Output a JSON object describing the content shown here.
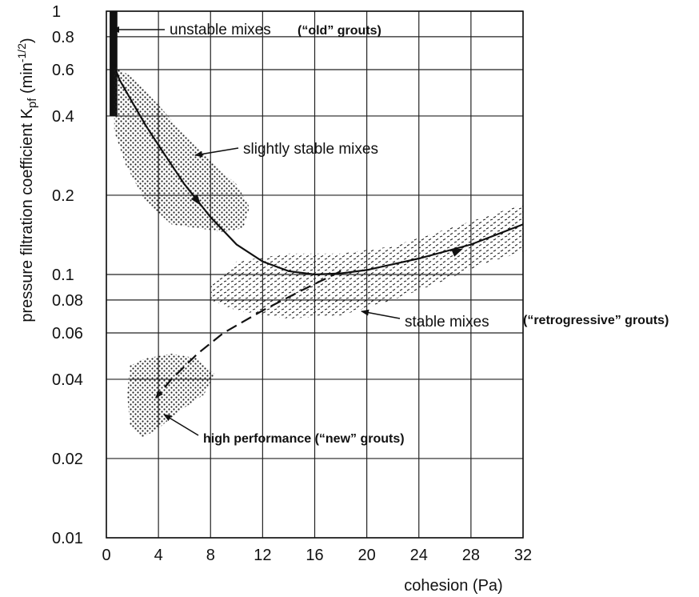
{
  "chart_data": {
    "type": "line",
    "xlabel": "cohesion (Pa)",
    "ylabel": "pressure filtration coefficient K",
    "ylabel_sub": "pf",
    "ylabel_unit_open": " (min",
    "ylabel_unit_exp": "-1/2",
    "ylabel_unit_close": ")",
    "xlim": [
      0,
      32
    ],
    "ylim": [
      0.01,
      1
    ],
    "y_scale": "log",
    "grid": true,
    "x_ticks": [
      0,
      4,
      8,
      12,
      16,
      20,
      24,
      28,
      32
    ],
    "x_tick_labels": [
      "0",
      "4",
      "8",
      "12",
      "16",
      "20",
      "24",
      "28",
      "32"
    ],
    "y_ticks": [
      0.01,
      0.02,
      0.04,
      0.06,
      0.08,
      0.1,
      0.2,
      0.4,
      0.6,
      0.8,
      1
    ],
    "y_tick_labels": [
      "0.01",
      "0.02",
      "0.04",
      "0.06",
      "0.08",
      "0.1",
      "0.2",
      "0.4",
      "0.6",
      "0.8",
      "1"
    ],
    "series": [
      {
        "style": "solid",
        "x": [
          0.5,
          1,
          2,
          3,
          4,
          6,
          8,
          10,
          12,
          14,
          16,
          18,
          20,
          24,
          28,
          32
        ],
        "y": [
          0.64,
          0.55,
          0.45,
          0.37,
          0.31,
          0.22,
          0.165,
          0.13,
          0.112,
          0.103,
          0.1,
          0.101,
          0.104,
          0.115,
          0.13,
          0.155
        ]
      },
      {
        "style": "dashed",
        "x": [
          18,
          15,
          12,
          9,
          7,
          5,
          3.8
        ],
        "y": [
          0.103,
          0.087,
          0.073,
          0.06,
          0.05,
          0.04,
          0.034
        ]
      }
    ],
    "regions": [
      {
        "name": "unstable mixes",
        "pattern": "solid",
        "points": [
          [
            0.25,
            1.0
          ],
          [
            0.85,
            1.0
          ],
          [
            0.85,
            0.4
          ],
          [
            0.25,
            0.4
          ]
        ]
      },
      {
        "name": "slightly stable mixes",
        "pattern": "dots",
        "points": [
          [
            0.6,
            0.62
          ],
          [
            2.0,
            0.56
          ],
          [
            4.0,
            0.44
          ],
          [
            6.0,
            0.34
          ],
          [
            8.0,
            0.27
          ],
          [
            10.0,
            0.22
          ],
          [
            11.0,
            0.18
          ],
          [
            10.5,
            0.15
          ],
          [
            9.0,
            0.145
          ],
          [
            7.0,
            0.15
          ],
          [
            5.0,
            0.155
          ],
          [
            3.0,
            0.19
          ],
          [
            1.5,
            0.26
          ],
          [
            0.6,
            0.35
          ]
        ]
      },
      {
        "name": "stable mixes",
        "pattern": "dashes",
        "points": [
          [
            8.0,
            0.09
          ],
          [
            10.0,
            0.112
          ],
          [
            14.0,
            0.12
          ],
          [
            18.0,
            0.12
          ],
          [
            22.0,
            0.128
          ],
          [
            26.0,
            0.148
          ],
          [
            29.0,
            0.165
          ],
          [
            32.0,
            0.185
          ],
          [
            32.0,
            0.122
          ],
          [
            29.0,
            0.11
          ],
          [
            26.0,
            0.095
          ],
          [
            22.0,
            0.08
          ],
          [
            18.0,
            0.07
          ],
          [
            14.0,
            0.068
          ],
          [
            10.0,
            0.073
          ],
          [
            8.0,
            0.08
          ]
        ]
      },
      {
        "name": "high performance",
        "pattern": "dots",
        "points": [
          [
            1.8,
            0.045
          ],
          [
            3.0,
            0.048
          ],
          [
            5.0,
            0.05
          ],
          [
            7.0,
            0.048
          ],
          [
            8.3,
            0.042
          ],
          [
            7.5,
            0.035
          ],
          [
            5.5,
            0.03
          ],
          [
            4.0,
            0.026
          ],
          [
            2.8,
            0.024
          ],
          [
            1.8,
            0.027
          ],
          [
            1.6,
            0.035
          ]
        ]
      }
    ],
    "annotations": [
      {
        "text": "unstable mixes",
        "style": "normal"
      },
      {
        "text": "(“old” grouts)",
        "style": "bold"
      },
      {
        "text": "slightly stable mixes",
        "style": "normal"
      },
      {
        "text": "stable mixes",
        "style": "normal"
      },
      {
        "text": "(“retrogressive” grouts)",
        "style": "bold"
      },
      {
        "text": "high performance (“new” grouts)",
        "style": "bold"
      }
    ]
  }
}
